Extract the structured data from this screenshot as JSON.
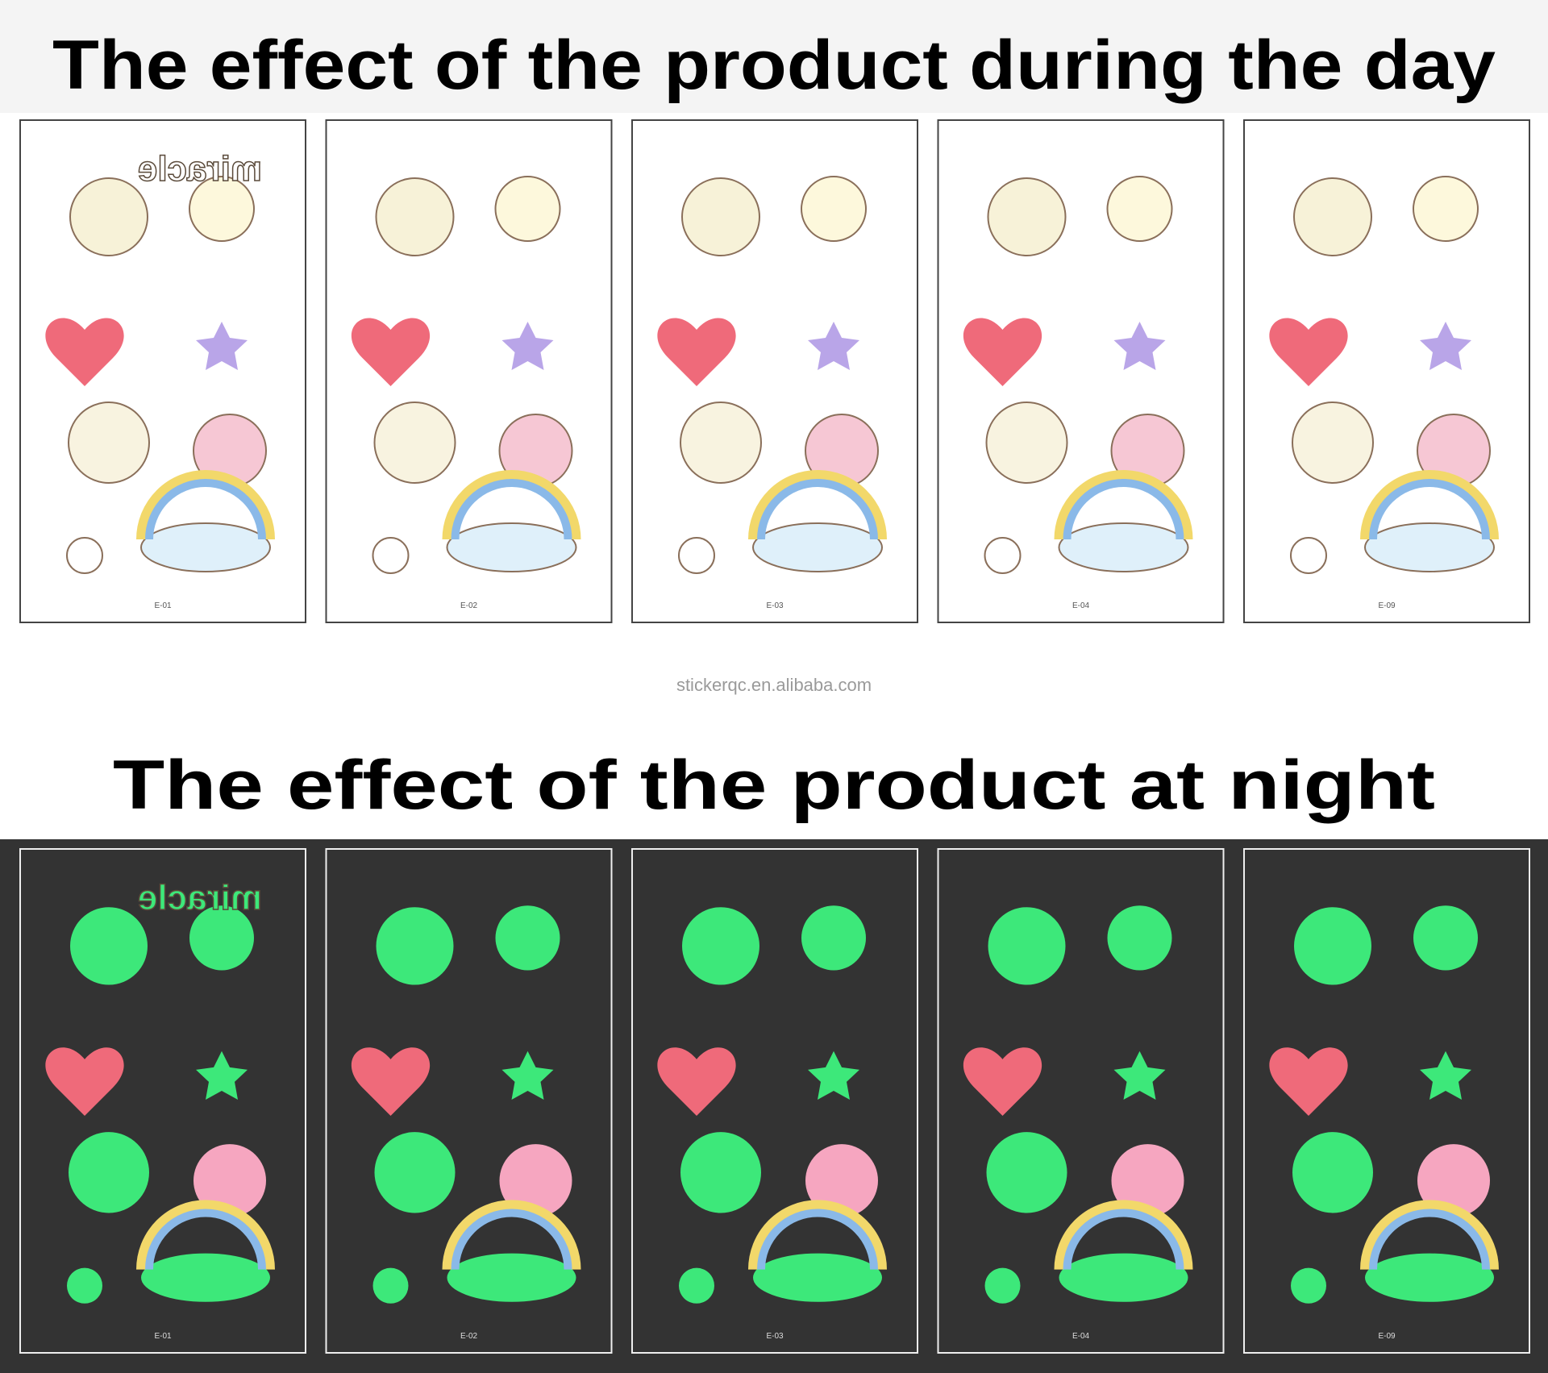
{
  "header": {
    "day_title": "The effect of the product during the day",
    "night_title": "The effect of the product at night",
    "watermark": "stickerqc.en.alibaba.com"
  },
  "sticker_text": "miracle",
  "day_sheets": [
    {
      "label": "E-01"
    },
    {
      "label": "E-02"
    },
    {
      "label": "E-03"
    },
    {
      "label": "E-04"
    },
    {
      "label": "E-09"
    }
  ],
  "night_sheets": [
    {
      "label": "E-01"
    },
    {
      "label": "E-02"
    },
    {
      "label": "E-03"
    },
    {
      "label": "E-04"
    },
    {
      "label": "E-09"
    }
  ]
}
